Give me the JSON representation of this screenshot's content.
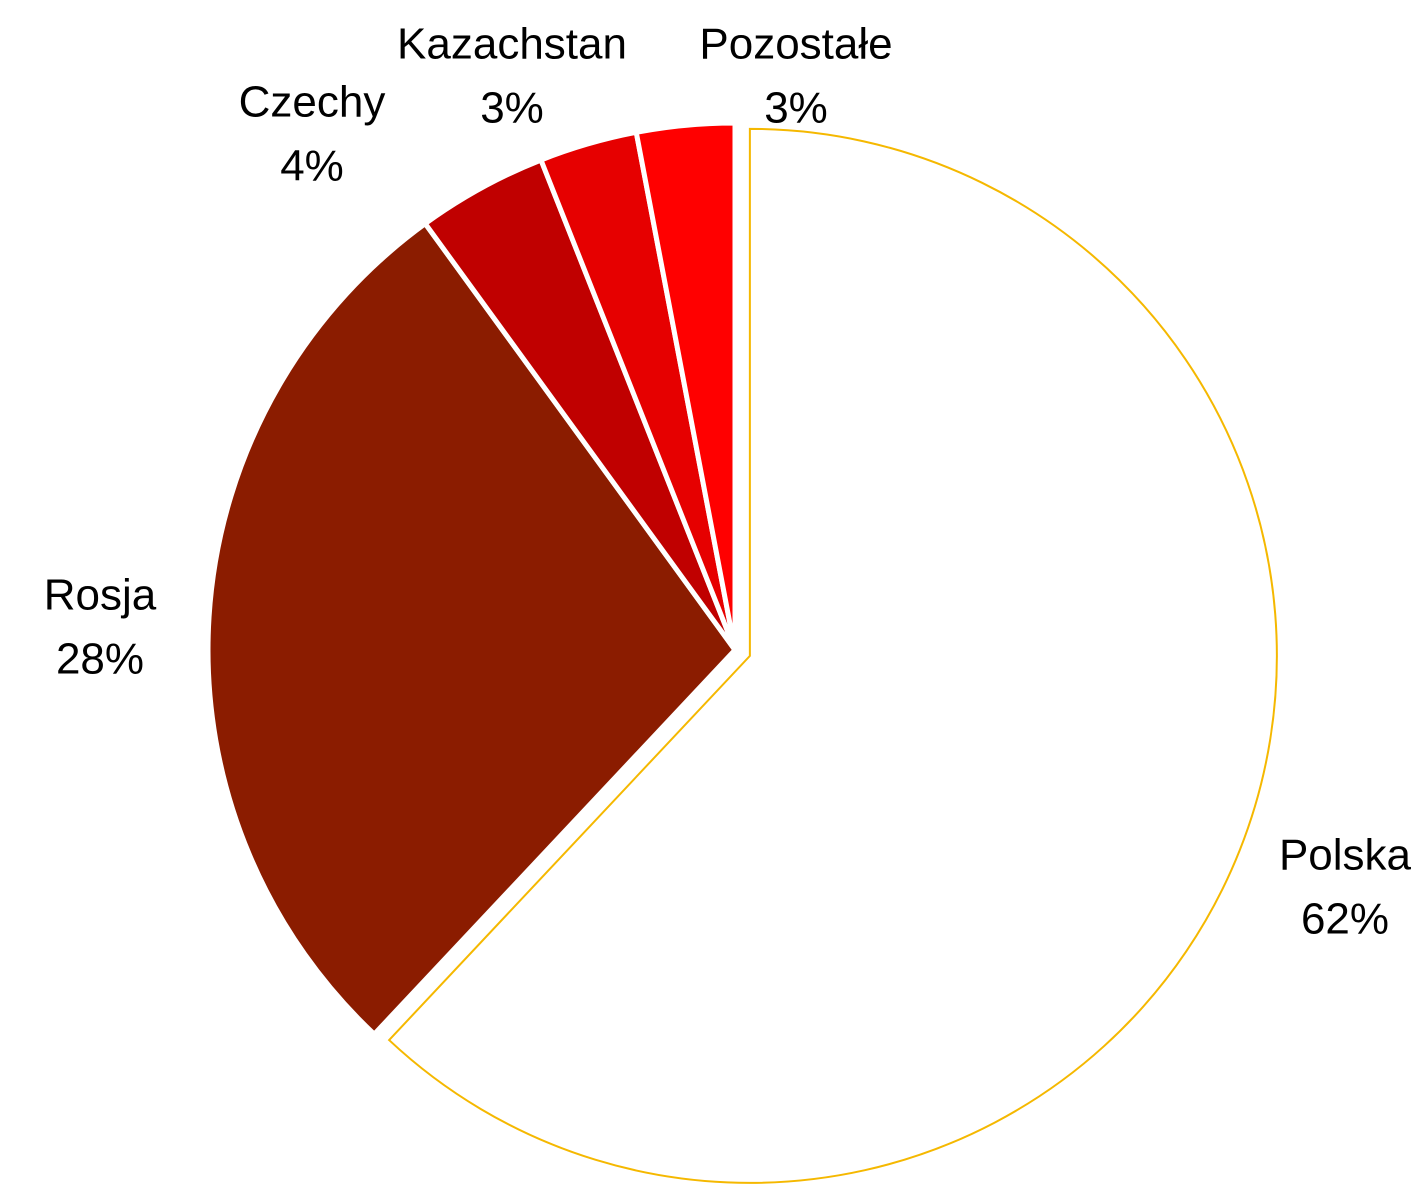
{
  "chart_data": {
    "type": "pie",
    "categories": [
      "Polska",
      "Rosja",
      "Czechy",
      "Kazachstan",
      "Pozostałe"
    ],
    "values": [
      62,
      28,
      4,
      3,
      3
    ],
    "value_labels": [
      "62%",
      "28%",
      "4%",
      "3%",
      "3%"
    ],
    "colors": [
      "#ffffff",
      "#8b1c00",
      "#c00000",
      "#e60000",
      "#ff0000"
    ],
    "edge_colors": [
      "#f5b800",
      "#ffffff",
      "#ffffff",
      "#ffffff",
      "#ffffff"
    ]
  }
}
